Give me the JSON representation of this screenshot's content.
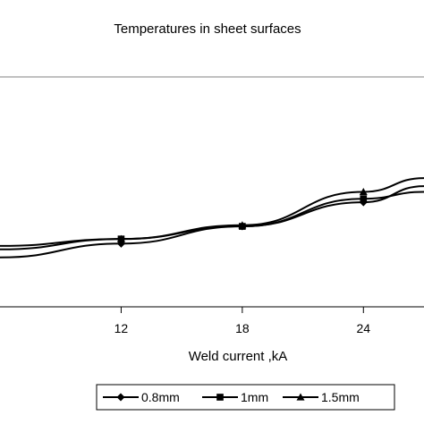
{
  "chart_data": {
    "type": "line",
    "title": "Temperatures in sheet surfaces",
    "xlabel": "Weld current ,kA",
    "ylabel": "",
    "x_ticks": [
      12,
      18,
      24
    ],
    "xlim": [
      6,
      27
    ],
    "ylim": [
      0,
      10
    ],
    "grid": false,
    "legend_position": "bottom",
    "series": [
      {
        "name": "0.8mm",
        "marker": "diamond",
        "x": [
          6,
          12,
          18,
          24,
          27
        ],
        "y": [
          2.15,
          2.75,
          3.5,
          4.55,
          5.25
        ]
      },
      {
        "name": "1mm",
        "marker": "square",
        "x": [
          6,
          12,
          18,
          24,
          27
        ],
        "y": [
          2.5,
          2.95,
          3.5,
          4.7,
          5.0
        ]
      },
      {
        "name": "1.5mm",
        "marker": "triangle",
        "x": [
          6,
          12,
          18,
          24,
          27
        ],
        "y": [
          2.65,
          2.95,
          3.55,
          5.0,
          5.6
        ]
      }
    ]
  }
}
